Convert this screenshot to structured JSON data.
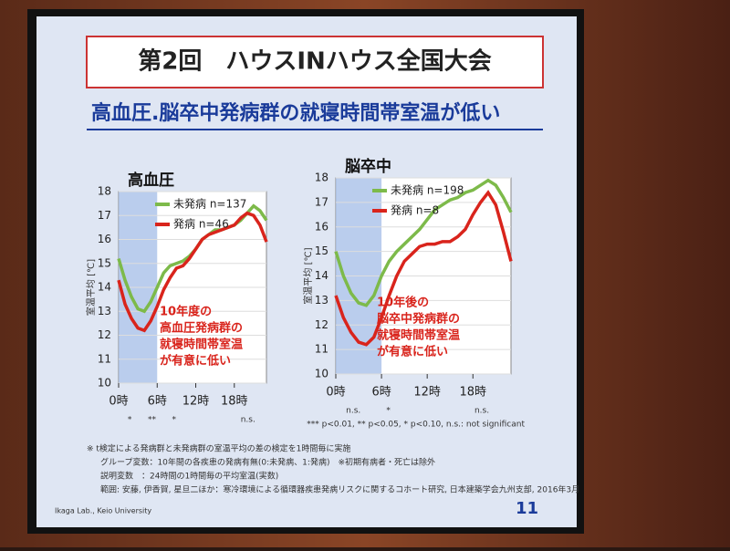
{
  "slide": {
    "header": "第2回　ハウスINハウス全国大会",
    "title": "高血圧.脳卒中発病群の就寝時間帯室温が低い",
    "footnote": "*** p<0.01, ** p<0.05, * p<0.10,  n.s.: not significant",
    "notes": [
      "※ t検定による発病群と未発病群の室温平均の差の検定を1時間毎に実施",
      "グループ変数：10年間の各疾患の発病有無(0:未発病、1:発病)　※初期有病者・死亡は除外",
      "説明変数　：24時間の1時間毎の平均室温(実数)",
      "範囲: 安藤, 伊香賀, 星旦二ほか：寒冷環境による循環器疾患発病リスクに関するコホート研究, 日本建築学会九州支部, 2016年3月"
    ],
    "lab": "Ikaga Lab., Keio University",
    "page": "11"
  },
  "chart_data": [
    {
      "type": "line",
      "title": "高血圧",
      "ylabel": "室温平均 [℃]",
      "x": [
        0,
        1,
        2,
        3,
        4,
        5,
        6,
        7,
        8,
        9,
        10,
        11,
        12,
        13,
        14,
        15,
        16,
        17,
        18,
        19,
        20,
        21,
        22,
        23
      ],
      "xlim": [
        0,
        23
      ],
      "ylim": [
        10,
        18
      ],
      "xticks": [
        {
          "value": 0,
          "label": "0時"
        },
        {
          "value": 6,
          "label": "6時"
        },
        {
          "value": 12,
          "label": "12時"
        },
        {
          "value": 18,
          "label": "18時"
        }
      ],
      "yticks": [
        10,
        11,
        12,
        13,
        14,
        15,
        16,
        17,
        18
      ],
      "series": [
        {
          "name": "未発病 n=137",
          "color": "#7dba4a",
          "values": [
            15.2,
            14.3,
            13.6,
            13.1,
            13.0,
            13.4,
            14.0,
            14.6,
            14.9,
            15.0,
            15.1,
            15.3,
            15.6,
            16.0,
            16.2,
            16.4,
            16.4,
            16.5,
            16.6,
            16.8,
            17.1,
            17.4,
            17.2,
            16.8
          ]
        },
        {
          "name": "発病 n=46",
          "color": "#d9241c",
          "values": [
            14.3,
            13.3,
            12.7,
            12.3,
            12.2,
            12.6,
            13.2,
            13.9,
            14.4,
            14.8,
            14.9,
            15.2,
            15.6,
            16.0,
            16.2,
            16.3,
            16.4,
            16.5,
            16.6,
            16.9,
            17.1,
            17.0,
            16.6,
            15.9
          ]
        }
      ],
      "annotation": [
        "10年度の",
        "高血圧発病群の",
        "就寝時間帯室温",
        "が有意に低い"
      ],
      "significance": [
        "*",
        "**",
        "*",
        "n.s."
      ]
    },
    {
      "type": "line",
      "title": "脳卒中",
      "ylabel": "室温平均 [℃]",
      "x": [
        0,
        1,
        2,
        3,
        4,
        5,
        6,
        7,
        8,
        9,
        10,
        11,
        12,
        13,
        14,
        15,
        16,
        17,
        18,
        19,
        20,
        21,
        22,
        23
      ],
      "xlim": [
        0,
        23
      ],
      "ylim": [
        10,
        18
      ],
      "xticks": [
        {
          "value": 0,
          "label": "0時"
        },
        {
          "value": 6,
          "label": "6時"
        },
        {
          "value": 12,
          "label": "12時"
        },
        {
          "value": 18,
          "label": "18時"
        }
      ],
      "yticks": [
        10,
        11,
        12,
        13,
        14,
        15,
        16,
        17,
        18
      ],
      "series": [
        {
          "name": "未発病 n=198",
          "color": "#7dba4a",
          "values": [
            15.0,
            14.0,
            13.3,
            12.9,
            12.8,
            13.2,
            14.0,
            14.6,
            15.0,
            15.3,
            15.6,
            15.9,
            16.3,
            16.7,
            16.9,
            17.1,
            17.2,
            17.4,
            17.5,
            17.7,
            17.9,
            17.7,
            17.2,
            16.6
          ]
        },
        {
          "name": "発病 n=8",
          "color": "#d9241c",
          "values": [
            13.2,
            12.3,
            11.7,
            11.3,
            11.2,
            11.5,
            12.3,
            13.2,
            14.0,
            14.6,
            14.9,
            15.2,
            15.3,
            15.3,
            15.4,
            15.4,
            15.6,
            15.9,
            16.5,
            17.0,
            17.4,
            16.9,
            15.8,
            14.6
          ]
        }
      ],
      "annotation": [
        "10年後の",
        "脳卒中発病群の",
        "就寝時間帯室温",
        "が有意に低い"
      ],
      "significance": [
        "n.s.",
        "*",
        "n.s."
      ]
    }
  ]
}
